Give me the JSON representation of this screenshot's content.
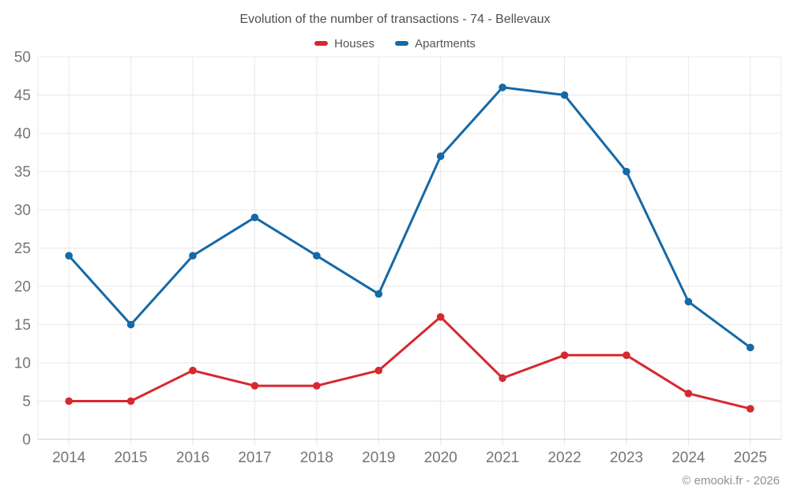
{
  "chart_data": {
    "type": "line",
    "title": "Evolution of the number of transactions - 74 - Bellevaux",
    "x": [
      2014,
      2015,
      2016,
      2017,
      2018,
      2019,
      2020,
      2021,
      2022,
      2023,
      2024,
      2025
    ],
    "series": [
      {
        "name": "Houses",
        "color": "#d7282f",
        "values": [
          5,
          5,
          9,
          7,
          7,
          9,
          16,
          8,
          11,
          11,
          6,
          4
        ]
      },
      {
        "name": "Apartments",
        "color": "#1569a6",
        "values": [
          24,
          15,
          24,
          29,
          24,
          19,
          37,
          46,
          45,
          35,
          18,
          12
        ]
      }
    ],
    "ylim": [
      0,
      50
    ],
    "yticks": [
      0,
      5,
      10,
      15,
      20,
      25,
      30,
      35,
      40,
      45,
      50
    ],
    "grid": true,
    "legend_position": "top",
    "marker": "circle"
  },
  "footer": {
    "copyright": "© emooki.fr - 2026"
  },
  "colors": {
    "grid": "#e8e8e8",
    "axis": "#cccccc",
    "tick_label": "#757575",
    "title_text": "#4f4f4f",
    "legend_text": "#555555",
    "copyright_text": "#8f8f8f",
    "background": "#ffffff"
  }
}
